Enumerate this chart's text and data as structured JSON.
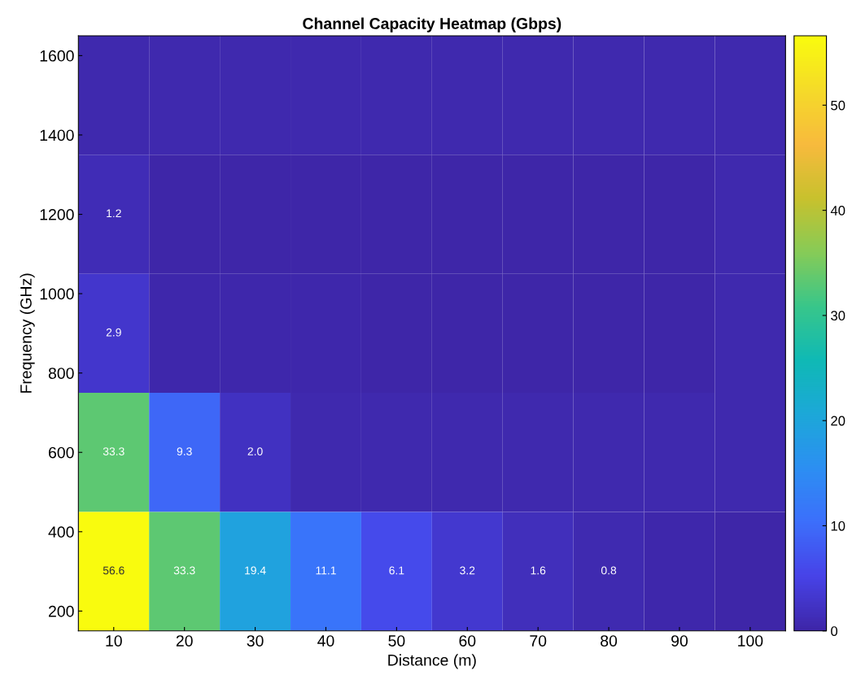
{
  "chart_data": {
    "type": "heatmap",
    "title": "Channel Capacity Heatmap (Gbps)",
    "xlabel": "Distance (m)",
    "ylabel": "Frequency (GHz)",
    "categories": [
      "10",
      "20",
      "30",
      "40",
      "50",
      "60",
      "70",
      "80",
      "90",
      "100"
    ],
    "ylim": [
      150,
      1650
    ],
    "yticks": [
      200,
      400,
      600,
      800,
      1000,
      1200,
      1400,
      1600
    ],
    "cells": [
      [
        0.6,
        0.6,
        0.6,
        0.6,
        0.6,
        0.6,
        0.6,
        0.6,
        0.6,
        0.6
      ],
      [
        1.2,
        0.2,
        0.2,
        0.2,
        0.2,
        0.2,
        0.2,
        0.2,
        0.2,
        0.5
      ],
      [
        2.9,
        0.4,
        0.4,
        0.4,
        0.2,
        0.2,
        0.2,
        0.2,
        0.2,
        0.5
      ],
      [
        33.3,
        9.3,
        2.0,
        0.6,
        0.6,
        0.6,
        0.6,
        0.6,
        0.6,
        0.6
      ],
      [
        56.6,
        33.3,
        19.4,
        11.1,
        6.1,
        3.2,
        1.6,
        0.8,
        0.4,
        0.2
      ]
    ],
    "cell_labels": [
      [
        null,
        null,
        null,
        null,
        null,
        null,
        null,
        null,
        null,
        null
      ],
      [
        "1.2",
        null,
        null,
        null,
        null,
        null,
        null,
        null,
        null,
        null
      ],
      [
        "2.9",
        null,
        null,
        null,
        null,
        null,
        null,
        null,
        null,
        null
      ],
      [
        "33.3",
        "9.3",
        "2.0",
        null,
        null,
        null,
        null,
        null,
        null,
        null
      ],
      [
        "56.6",
        "33.3",
        "19.4",
        "11.1",
        "6.1",
        "3.2",
        "1.6",
        "0.8",
        null,
        null
      ]
    ],
    "clim": [
      0,
      56.6
    ],
    "cticks": [
      0,
      10,
      20,
      30,
      40,
      50
    ],
    "grid": false
  }
}
